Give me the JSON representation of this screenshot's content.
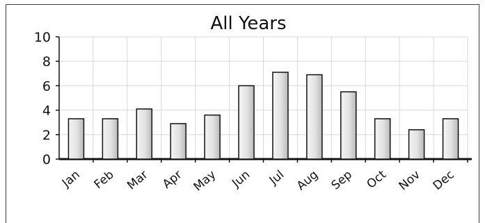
{
  "chart_data": {
    "type": "bar",
    "title": "All Years",
    "xlabel": "",
    "ylabel": "",
    "categories": [
      "Jan",
      "Feb",
      "Mar",
      "Apr",
      "May",
      "Jun",
      "Jul",
      "Aug",
      "Sep",
      "Oct",
      "Nov",
      "Dec"
    ],
    "values": [
      3.3,
      3.3,
      4.1,
      2.9,
      3.6,
      6.0,
      7.1,
      6.9,
      5.5,
      3.3,
      2.4,
      3.3
    ],
    "ylim": [
      0,
      10
    ],
    "yticks": [
      "0",
      "2",
      "4",
      "6",
      "8",
      "10"
    ],
    "grid": true,
    "legend": "none"
  }
}
